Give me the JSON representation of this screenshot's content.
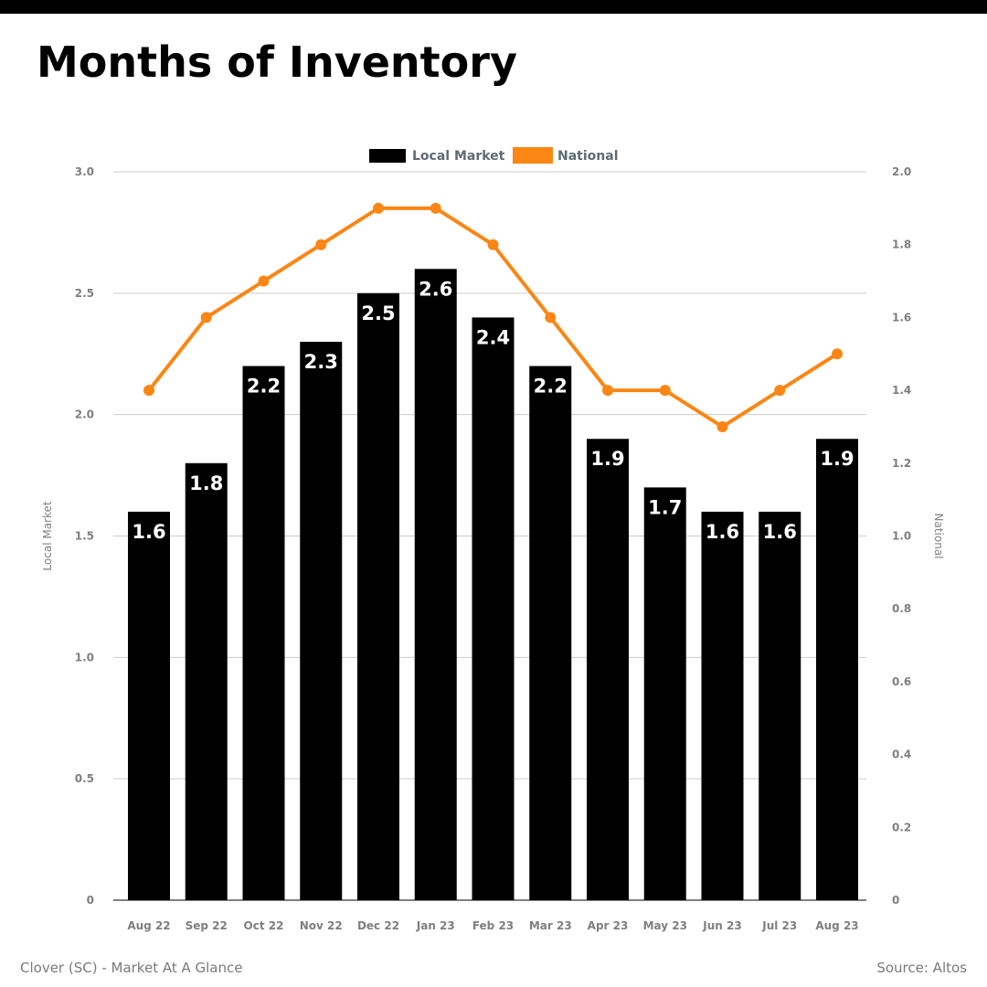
{
  "page": {
    "title": "Months of Inventory",
    "footer_left": "Clover (SC) - Market At A Glance",
    "footer_right": "Source: Altos"
  },
  "colors": {
    "bar": "#000000",
    "line": "#fb8614",
    "grid": "#cccccc",
    "tick": "#7f7f7f",
    "legend_text": "#5f6b73",
    "bar_label": "#ffffff"
  },
  "chart_data": {
    "type": "bar",
    "categories": [
      "Aug 22",
      "Sep 22",
      "Oct 22",
      "Nov 22",
      "Dec 22",
      "Jan 23",
      "Feb 23",
      "Mar 23",
      "Apr 23",
      "May 23",
      "Jun 23",
      "Jul 23",
      "Aug 23"
    ],
    "series": [
      {
        "name": "Local Market",
        "type": "bar",
        "axis": "left",
        "values": [
          1.6,
          1.8,
          2.2,
          2.3,
          2.5,
          2.6,
          2.4,
          2.2,
          1.9,
          1.7,
          1.6,
          1.6,
          1.9
        ],
        "labels": [
          "1.6",
          "1.8",
          "2.2",
          "2.3",
          "2.5",
          "2.6",
          "2.4",
          "2.2",
          "1.9",
          "1.7",
          "1.6",
          "1.6",
          "1.9"
        ]
      },
      {
        "name": "National",
        "type": "line",
        "axis": "right",
        "values": [
          1.4,
          1.6,
          1.7,
          1.8,
          1.9,
          1.9,
          1.8,
          1.6,
          1.4,
          1.4,
          1.3,
          1.4,
          1.5
        ]
      }
    ],
    "y_left": {
      "label": "Local Market",
      "range": [
        0,
        3.0
      ],
      "ticks": [
        0,
        0.5,
        1.0,
        1.5,
        2.0,
        2.5,
        3.0
      ],
      "tick_labels": [
        "0",
        "0.5",
        "1.0",
        "1.5",
        "2.0",
        "2.5",
        "3.0"
      ]
    },
    "y_right": {
      "label": "National",
      "range": [
        0,
        2.0
      ],
      "ticks": [
        0,
        0.2,
        0.4,
        0.6,
        0.8,
        1.0,
        1.2,
        1.4,
        1.6,
        1.8,
        2.0
      ],
      "tick_labels": [
        "0",
        "0.2",
        "0.4",
        "0.6",
        "0.8",
        "1.0",
        "1.2",
        "1.4",
        "1.6",
        "1.8",
        "2.0"
      ]
    },
    "grid": true,
    "legend": "top-center"
  }
}
